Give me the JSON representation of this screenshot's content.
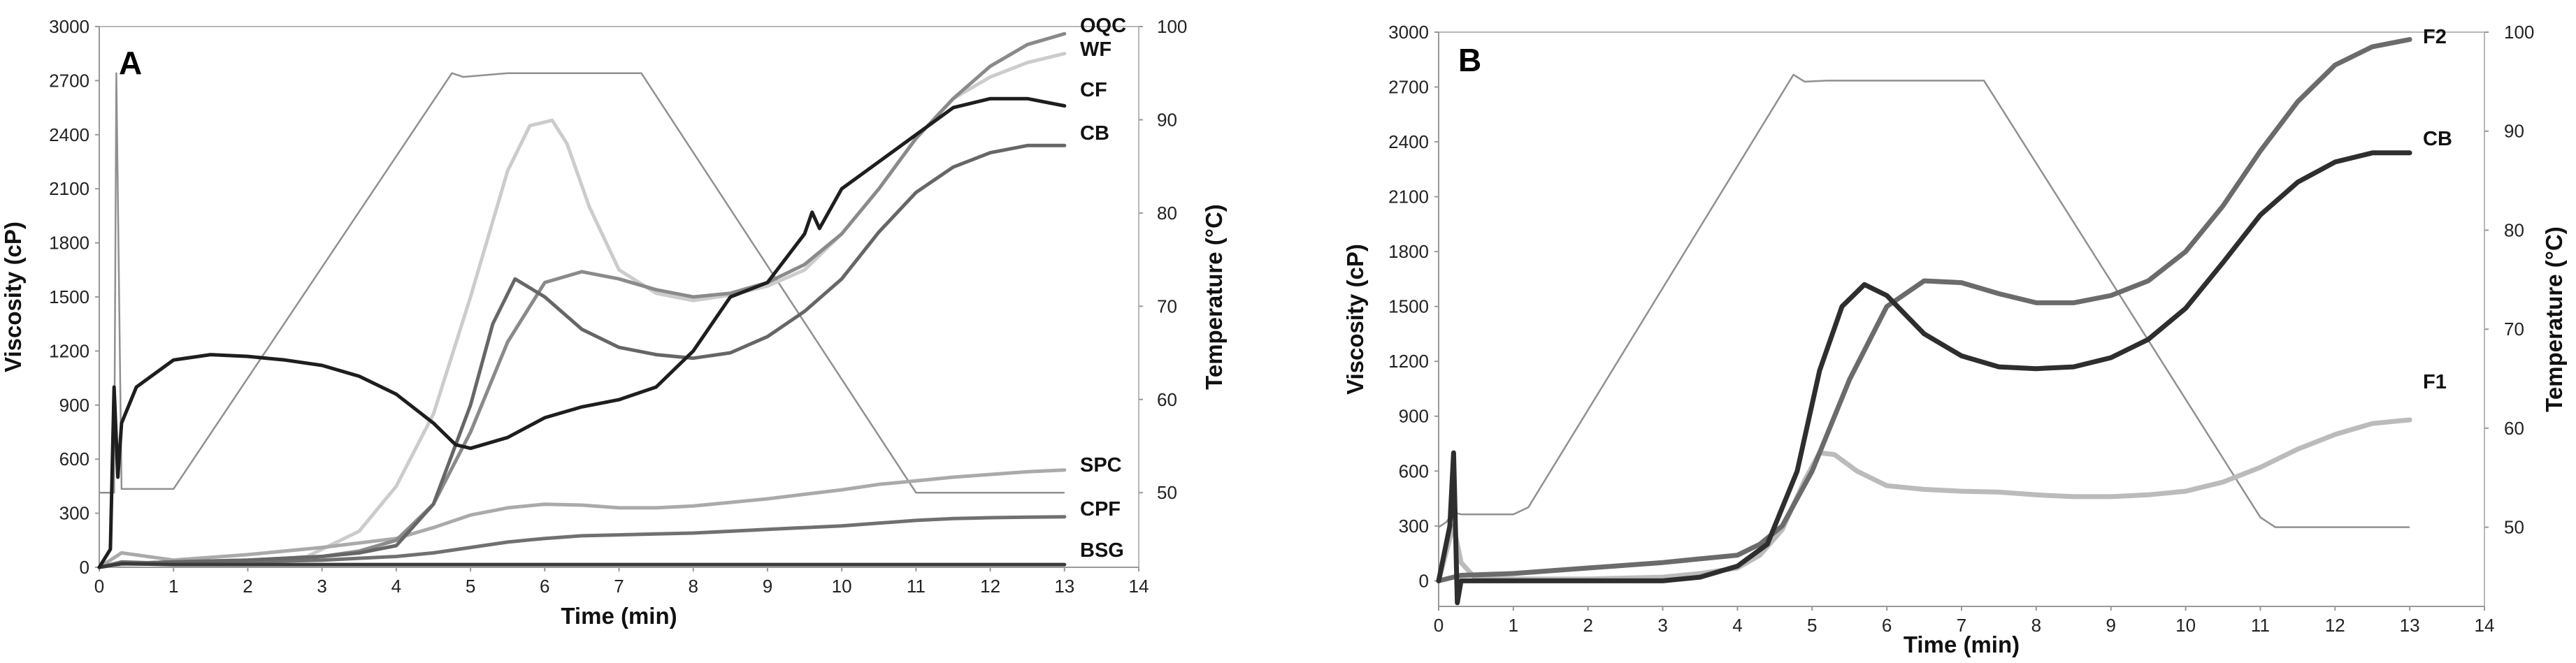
{
  "chart_data": [
    {
      "panel": "A",
      "type": "line",
      "xlabel": "Time (min)",
      "ylabel": "Viscosity (cP)",
      "y2label": "Temperature (°C)",
      "xlim": [
        0,
        14
      ],
      "ylim": [
        0,
        3000
      ],
      "y2lim": [
        42,
        100
      ],
      "xticks": [
        "0",
        "1",
        "2",
        "3",
        "4",
        "5",
        "6",
        "7",
        "8",
        "9",
        "10",
        "11",
        "12",
        "13",
        "14"
      ],
      "yticks": [
        "0",
        "300",
        "600",
        "900",
        "1200",
        "1500",
        "1800",
        "2100",
        "2400",
        "2700",
        "3000"
      ],
      "y2ticks": [
        "50",
        "60",
        "70",
        "80",
        "90",
        "100"
      ],
      "grid": false,
      "series": [
        {
          "name": "OQC",
          "color": "#8a8a8a",
          "width": 5,
          "x": [
            0,
            0.3,
            1,
            2,
            3,
            3.5,
            4,
            4.5,
            5,
            5.5,
            6,
            6.5,
            7,
            7.5,
            8,
            8.5,
            9,
            9.5,
            10,
            10.5,
            11,
            11.5,
            12,
            12.5,
            13
          ],
          "y": [
            0,
            20,
            30,
            40,
            60,
            90,
            150,
            350,
            750,
            1250,
            1580,
            1640,
            1600,
            1540,
            1500,
            1520,
            1580,
            1680,
            1850,
            2100,
            2380,
            2600,
            2780,
            2900,
            2960
          ]
        },
        {
          "name": "WF",
          "color": "#cccccc",
          "width": 5,
          "x": [
            0,
            0.3,
            1,
            2,
            2.8,
            3.5,
            4,
            4.5,
            5,
            5.5,
            5.8,
            6.1,
            6.3,
            6.6,
            7,
            7.5,
            8,
            8.5,
            9,
            9.5,
            10,
            10.5,
            11,
            11.5,
            12,
            12.5,
            13
          ],
          "y": [
            0,
            15,
            20,
            30,
            60,
            200,
            450,
            850,
            1500,
            2200,
            2450,
            2480,
            2350,
            2000,
            1650,
            1520,
            1480,
            1510,
            1560,
            1650,
            1850,
            2100,
            2380,
            2600,
            2720,
            2800,
            2850
          ]
        },
        {
          "name": "CF",
          "color": "#1e1e1e",
          "width": 5,
          "x": [
            0,
            0.15,
            0.2,
            0.25,
            0.3,
            0.5,
            1,
            1.5,
            2,
            2.5,
            3,
            3.5,
            4,
            4.5,
            4.8,
            5,
            5.5,
            6,
            6.5,
            7,
            7.5,
            8,
            8.5,
            9,
            9.5,
            9.6,
            9.7,
            10,
            10.5,
            11,
            11.5,
            12,
            12.5,
            13
          ],
          "y": [
            0,
            100,
            1000,
            500,
            800,
            1000,
            1150,
            1180,
            1170,
            1150,
            1120,
            1060,
            960,
            800,
            680,
            660,
            720,
            830,
            890,
            930,
            1000,
            1200,
            1500,
            1580,
            1850,
            1970,
            1880,
            2100,
            2250,
            2400,
            2550,
            2600,
            2600,
            2560
          ]
        },
        {
          "name": "CB",
          "color": "#666666",
          "width": 5,
          "x": [
            0,
            0.3,
            1,
            2,
            3,
            3.5,
            4,
            4.5,
            5,
            5.3,
            5.6,
            6,
            6.5,
            7,
            7.5,
            8,
            8.5,
            9,
            9.5,
            10,
            10.5,
            11,
            11.5,
            12,
            12.5,
            13
          ],
          "y": [
            0,
            20,
            30,
            40,
            60,
            80,
            120,
            350,
            900,
            1350,
            1600,
            1500,
            1320,
            1220,
            1180,
            1160,
            1190,
            1280,
            1420,
            1600,
            1860,
            2080,
            2220,
            2300,
            2340,
            2340
          ]
        },
        {
          "name": "SPC",
          "color": "#aaaaaa",
          "width": 5,
          "x": [
            0,
            0.3,
            1,
            2,
            3,
            4,
            4.5,
            5,
            5.5,
            6,
            6.5,
            7,
            7.5,
            8,
            8.5,
            9,
            9.5,
            10,
            10.5,
            11,
            11.5,
            12,
            12.5,
            13
          ],
          "y": [
            0,
            80,
            40,
            70,
            110,
            160,
            220,
            290,
            330,
            350,
            345,
            330,
            330,
            340,
            360,
            380,
            405,
            430,
            460,
            480,
            500,
            515,
            530,
            540
          ]
        },
        {
          "name": "CPF",
          "color": "#707070",
          "width": 5,
          "x": [
            0,
            0.3,
            1,
            2,
            3,
            4,
            4.5,
            5,
            5.5,
            6,
            6.5,
            7,
            7.5,
            8,
            8.5,
            9,
            9.5,
            10,
            10.5,
            11,
            11.5,
            12,
            12.5,
            13
          ],
          "y": [
            0,
            30,
            20,
            30,
            40,
            60,
            80,
            110,
            140,
            160,
            175,
            180,
            185,
            190,
            200,
            210,
            220,
            230,
            245,
            260,
            270,
            275,
            278,
            280
          ]
        },
        {
          "name": "BSG",
          "color": "#3a3a3a",
          "width": 5,
          "x": [
            0,
            0.3,
            1,
            3,
            5,
            7,
            9,
            11,
            13
          ],
          "y": [
            0,
            20,
            15,
            15,
            15,
            15,
            15,
            15,
            15
          ]
        }
      ],
      "temperature": {
        "name": "Temperature",
        "color": "#909090",
        "x": [
          0,
          0.2,
          0.23,
          0.3,
          1,
          4.75,
          4.9,
          5.5,
          7.3,
          11,
          11.6,
          13
        ],
        "y": [
          50,
          50,
          95,
          50.4,
          50.4,
          95,
          94.6,
          95,
          95,
          50,
          50,
          50
        ]
      }
    },
    {
      "panel": "B",
      "type": "line",
      "xlabel": "Time (min)",
      "ylabel": "Viscosity (cP)",
      "y2label": "Temperature (°C)",
      "xlim": [
        0,
        14
      ],
      "ylim": [
        -140,
        3000
      ],
      "y2lim": [
        42,
        100
      ],
      "xticks": [
        "0",
        "1",
        "2",
        "3",
        "4",
        "5",
        "6",
        "7",
        "8",
        "9",
        "10",
        "11",
        "12",
        "13",
        "14"
      ],
      "yticks": [
        "0",
        "300",
        "600",
        "900",
        "1200",
        "1500",
        "1800",
        "2100",
        "2400",
        "2700",
        "3000"
      ],
      "y2ticks": [
        "50",
        "60",
        "70",
        "80",
        "90",
        "100"
      ],
      "grid": false,
      "series": [
        {
          "name": "F2",
          "color": "#6b6b6b",
          "width": 7,
          "x": [
            0,
            0.3,
            1,
            2,
            3,
            3.5,
            4,
            4.3,
            4.6,
            5,
            5.5,
            6,
            6.5,
            7,
            7.5,
            8,
            8.5,
            9,
            9.5,
            10,
            10.5,
            11,
            11.5,
            12,
            12.5,
            13
          ],
          "y": [
            0,
            30,
            40,
            70,
            100,
            120,
            140,
            200,
            300,
            600,
            1100,
            1500,
            1640,
            1630,
            1570,
            1520,
            1520,
            1560,
            1640,
            1800,
            2050,
            2350,
            2620,
            2820,
            2920,
            2960
          ]
        },
        {
          "name": "CB",
          "color": "#2e2e2e",
          "width": 7,
          "x": [
            0,
            0.15,
            0.2,
            0.25,
            0.3,
            0.5,
            1,
            2,
            3,
            3.5,
            4,
            4.4,
            4.8,
            5.1,
            5.4,
            5.7,
            6,
            6.5,
            7,
            7.5,
            8,
            8.5,
            9,
            9.5,
            10,
            10.5,
            11,
            11.5,
            12,
            12.5,
            13
          ],
          "y": [
            0,
            300,
            700,
            -120,
            0,
            0,
            0,
            0,
            0,
            20,
            80,
            200,
            600,
            1150,
            1500,
            1620,
            1560,
            1350,
            1230,
            1170,
            1160,
            1170,
            1220,
            1320,
            1490,
            1740,
            2000,
            2180,
            2290,
            2340,
            2340
          ]
        },
        {
          "name": "F1",
          "color": "#bbbbbb",
          "width": 7,
          "x": [
            0,
            0.15,
            0.2,
            0.3,
            0.5,
            1,
            2,
            3,
            3.5,
            4,
            4.3,
            4.6,
            4.9,
            5.1,
            5.3,
            5.6,
            6,
            6.5,
            7,
            7.5,
            8,
            8.5,
            9,
            9.5,
            10,
            10.5,
            11,
            11.5,
            12,
            12.5,
            13
          ],
          "y": [
            0,
            230,
            300,
            100,
            10,
            10,
            10,
            20,
            40,
            70,
            140,
            280,
            550,
            700,
            690,
            600,
            520,
            500,
            490,
            485,
            470,
            460,
            460,
            470,
            490,
            540,
            620,
            720,
            800,
            860,
            880
          ]
        }
      ],
      "temperature": {
        "name": "Temperature",
        "color": "#909090",
        "x": [
          0,
          0.1,
          0.2,
          0.3,
          1,
          1.2,
          4.75,
          4.9,
          5.2,
          7.3,
          11,
          11.2,
          12,
          13
        ],
        "y": [
          50,
          50.5,
          51.5,
          51.3,
          51.3,
          52,
          95.7,
          95,
          95.1,
          95.1,
          51,
          50,
          50,
          50
        ]
      }
    }
  ]
}
